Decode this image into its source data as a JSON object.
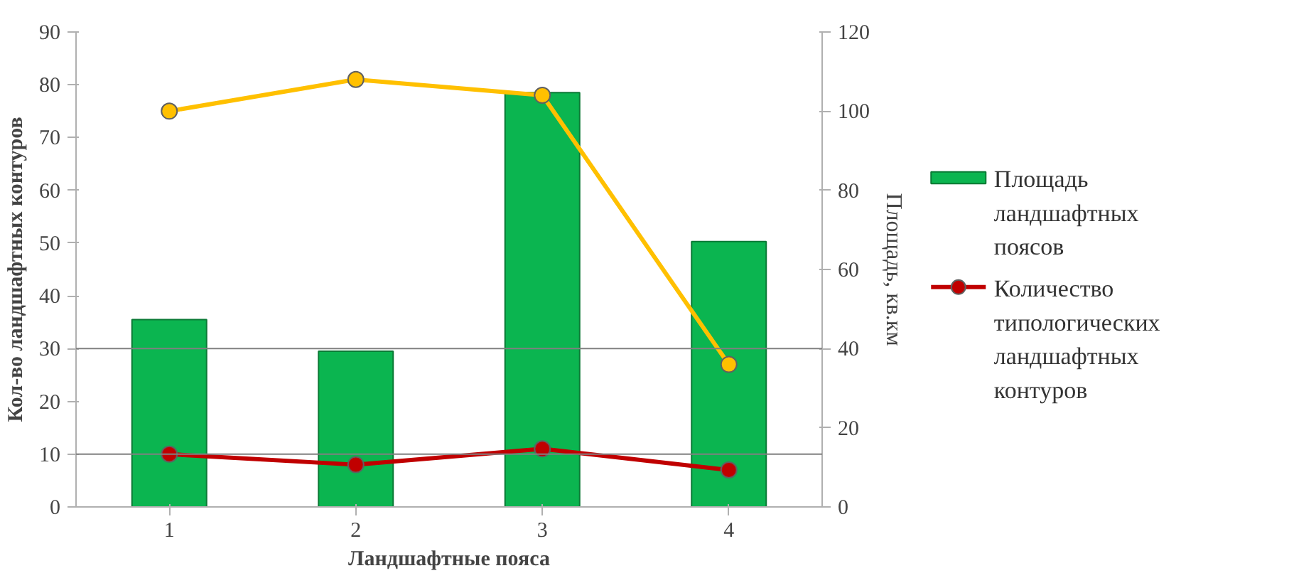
{
  "chart_data": {
    "type": "bar",
    "xlabel": "Ландшафтные пояса",
    "ylabel": "Кол-во ландшафтных контуров",
    "y2label": "Площадь, кв.км",
    "categories": [
      "1",
      "2",
      "3",
      "4"
    ],
    "series": [
      {
        "name": "Площадь ландшафтных поясов",
        "color": "#0bb550",
        "values": [
          35.5,
          29.5,
          78.5,
          50.3
        ]
      },
      {
        "name": "Количество типологических ландшафтных контуров",
        "type": "line",
        "color": "#c00000",
        "values": [
          10,
          8,
          11,
          7
        ],
        "marker": "circle"
      },
      {
        "type": "line",
        "color": "#ffc000",
        "values": [
          100,
          108,
          104,
          36
        ],
        "axis": "y2",
        "marker": "circle"
      }
    ],
    "ylim": [
      0,
      90
    ],
    "yticks": [
      0,
      10,
      20,
      30,
      40,
      50,
      60,
      70,
      80,
      90
    ],
    "y2lim": [
      0,
      120
    ],
    "y2ticks": [
      0,
      20,
      40,
      60,
      80,
      100,
      120
    ],
    "ref_lines": [
      {
        "axis": "y",
        "value": 10,
        "color": "#808080"
      },
      {
        "axis": "y",
        "value": 30,
        "color": "#808080"
      }
    ],
    "legend": "right",
    "grid": false
  }
}
